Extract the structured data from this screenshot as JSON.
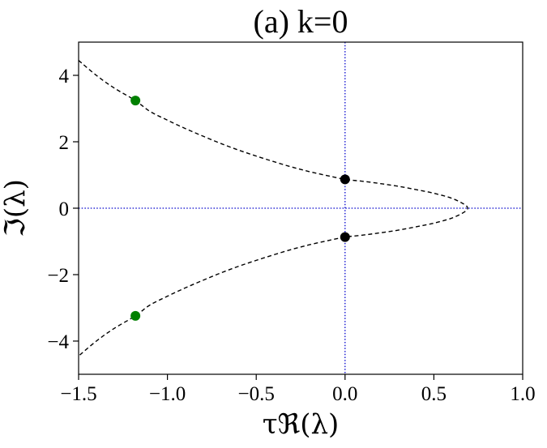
{
  "chart_data": {
    "type": "scatter",
    "title": "(a) k=0",
    "xlabel": "τℜ(λ)",
    "ylabel": "ℑ(λ)",
    "xlim": [
      -1.5,
      1.0
    ],
    "ylim": [
      -5.0,
      5.0
    ],
    "xticks": [
      -1.5,
      -1.0,
      -0.5,
      0.0,
      0.5,
      1.0
    ],
    "xtick_labels": [
      "−1.5",
      "−1.0",
      "−0.5",
      "0.0",
      "0.5",
      "1.0"
    ],
    "yticks": [
      -4,
      -2,
      0,
      2,
      4
    ],
    "ytick_labels": [
      "−4",
      "−2",
      "0",
      "2",
      "4"
    ],
    "grid": false,
    "reference_lines": {
      "x": 0,
      "y": 0,
      "color": "#0000cc",
      "style": "dotted"
    },
    "curve": {
      "style": "dashed",
      "color": "#000000",
      "x": [
        0.69,
        0.67,
        0.6,
        0.5,
        0.4,
        0.3,
        0.2,
        0.1,
        0.0,
        -0.1,
        -0.2,
        -0.3,
        -0.4,
        -0.5,
        -0.6,
        -0.7,
        -0.8,
        -0.9,
        -1.0,
        -1.1,
        -1.18,
        -1.3,
        -1.4,
        -1.5
      ],
      "y_upper": [
        0.0,
        0.12,
        0.3,
        0.45,
        0.56,
        0.66,
        0.74,
        0.81,
        0.87,
        0.98,
        1.1,
        1.24,
        1.4,
        1.57,
        1.75,
        1.95,
        2.17,
        2.4,
        2.65,
        2.92,
        3.24,
        3.62,
        4.0,
        4.45
      ],
      "y_lower": [
        0.0,
        -0.12,
        -0.3,
        -0.45,
        -0.56,
        -0.66,
        -0.74,
        -0.81,
        -0.87,
        -0.98,
        -1.1,
        -1.24,
        -1.4,
        -1.57,
        -1.75,
        -1.95,
        -2.17,
        -2.4,
        -2.65,
        -2.92,
        -3.24,
        -3.62,
        -4.0,
        -4.45
      ]
    },
    "series": [
      {
        "color": "#000000",
        "points": [
          {
            "x": 0.0,
            "y": 0.87
          },
          {
            "x": 0.0,
            "y": -0.87
          }
        ]
      },
      {
        "color": "#008000",
        "points": [
          {
            "x": -1.18,
            "y": 3.24
          },
          {
            "x": -1.18,
            "y": -3.24
          }
        ]
      }
    ]
  }
}
